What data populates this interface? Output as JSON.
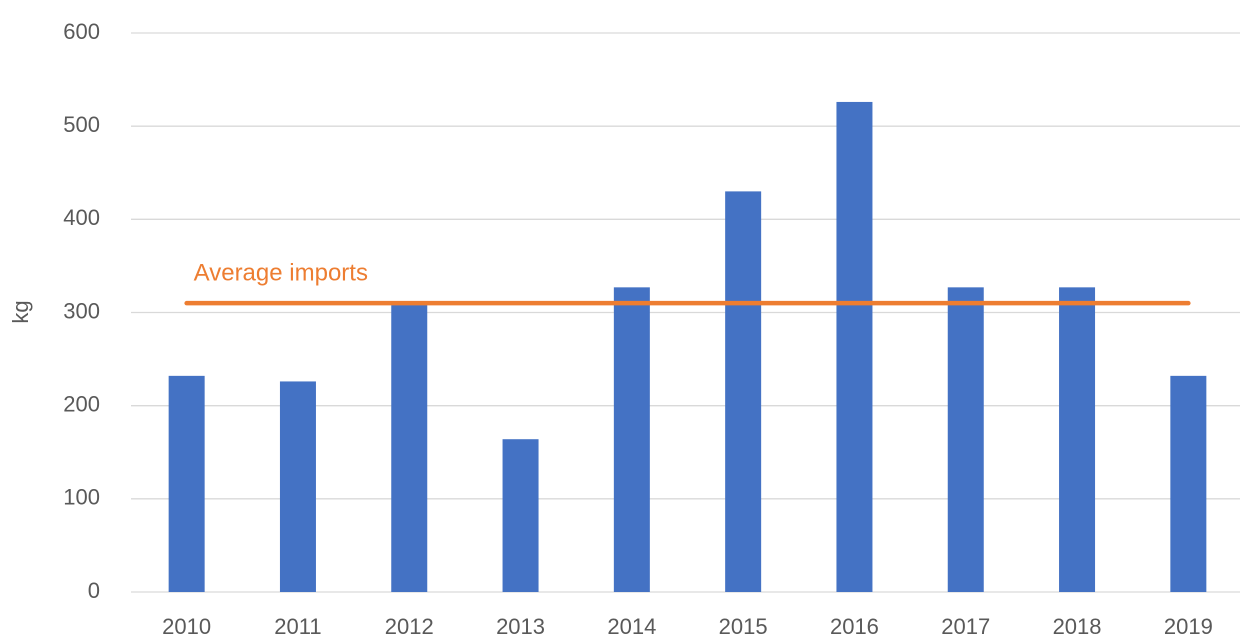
{
  "chart_data": {
    "type": "bar",
    "y_label": "kg",
    "categories": [
      "2010",
      "2011",
      "2012",
      "2013",
      "2014",
      "2015",
      "2016",
      "2017",
      "2018",
      "2019"
    ],
    "values": [
      232,
      226,
      308,
      164,
      327,
      430,
      526,
      327,
      327,
      232
    ],
    "color": "#4472c4",
    "reference_line": {
      "name": "Average imports",
      "value": 310,
      "color": "#ed7d31"
    },
    "ylim": [
      0,
      600
    ],
    "yticks": [
      0,
      100,
      200,
      300,
      400,
      500,
      600
    ],
    "grid": true
  }
}
